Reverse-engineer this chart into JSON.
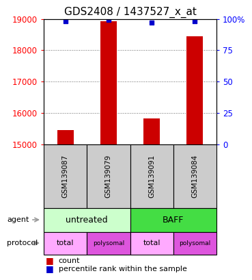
{
  "title": "GDS2408 / 1437527_x_at",
  "samples": [
    "GSM139087",
    "GSM139079",
    "GSM139091",
    "GSM139084"
  ],
  "count_values": [
    15450,
    18920,
    15820,
    18450
  ],
  "percentile_values": [
    98,
    99,
    97,
    98
  ],
  "ymin": 15000,
  "ymax": 19000,
  "yticks_left": [
    15000,
    16000,
    17000,
    18000,
    19000
  ],
  "yticks_right_vals": [
    0,
    25,
    50,
    75,
    100
  ],
  "yticks_right_labels": [
    "0",
    "25",
    "50",
    "75",
    "100%"
  ],
  "bar_color": "#cc0000",
  "percentile_color": "#0000cc",
  "agent_groups": [
    {
      "start": 0,
      "end": 2,
      "label": "untreated",
      "color": "#ccffcc"
    },
    {
      "start": 2,
      "end": 4,
      "label": "BAFF",
      "color": "#44dd44"
    }
  ],
  "protocol_labels": [
    "total",
    "polysomal",
    "total",
    "polysomal"
  ],
  "protocol_colors": [
    "#ffaaff",
    "#dd55dd",
    "#ffaaff",
    "#dd55dd"
  ],
  "sample_box_color": "#cccccc",
  "title_fontsize": 11
}
